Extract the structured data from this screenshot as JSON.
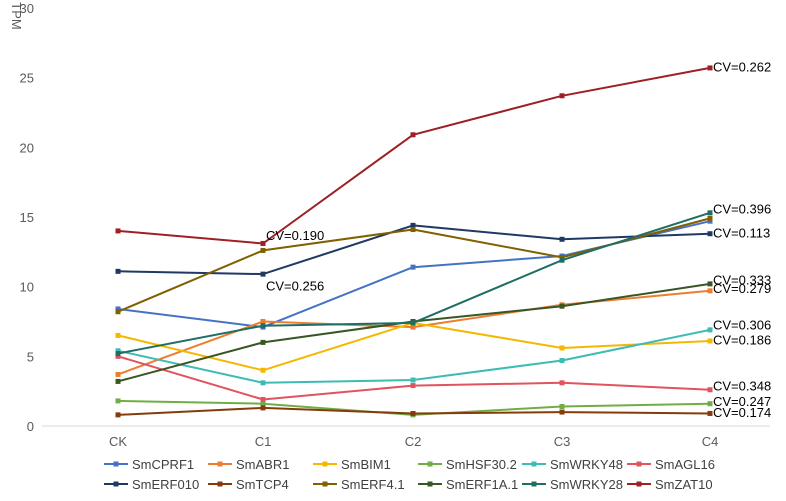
{
  "chart_data": {
    "type": "line",
    "ylabel": "TPM",
    "xlabel": "",
    "ylim": [
      0,
      30
    ],
    "yticks": [
      0,
      5,
      10,
      15,
      20,
      25,
      30
    ],
    "grid": false,
    "legend_position": "bottom",
    "categories": [
      "CK",
      "C1",
      "C2",
      "C3",
      "C4"
    ],
    "series": [
      {
        "name": "SmCPRF1",
        "color": "#4472C4",
        "values": [
          8.4,
          7.1,
          11.4,
          12.2,
          14.7
        ]
      },
      {
        "name": "SmABR1",
        "color": "#ED7D31",
        "values": [
          3.7,
          7.5,
          7.1,
          8.7,
          9.7
        ]
      },
      {
        "name": "SmBIM1",
        "color": "#F5B800",
        "values": [
          6.5,
          4.0,
          7.4,
          5.6,
          6.1
        ]
      },
      {
        "name": "SmHSF30.2",
        "color": "#70AD47",
        "values": [
          1.8,
          1.6,
          0.8,
          1.4,
          1.6
        ]
      },
      {
        "name": "SmWRKY48",
        "color": "#3CBCB4",
        "values": [
          5.4,
          3.1,
          3.3,
          4.7,
          6.9
        ]
      },
      {
        "name": "SmAGL16",
        "color": "#E0535F",
        "values": [
          5.0,
          1.9,
          2.9,
          3.1,
          2.6
        ]
      },
      {
        "name": "SmERF010",
        "color": "#203864",
        "values": [
          11.1,
          10.9,
          14.4,
          13.4,
          13.8
        ]
      },
      {
        "name": "SmTCP4",
        "color": "#843C0C",
        "values": [
          0.8,
          1.3,
          0.9,
          1.0,
          0.9
        ]
      },
      {
        "name": "SmERF4.1",
        "color": "#806000",
        "values": [
          8.2,
          12.6,
          14.1,
          12.1,
          14.9
        ]
      },
      {
        "name": "SmERF1A.1",
        "color": "#385723",
        "values": [
          3.2,
          6.0,
          7.5,
          8.6,
          10.2
        ]
      },
      {
        "name": "SmWRKY28",
        "color": "#1F6E64",
        "values": [
          5.2,
          7.2,
          7.4,
          11.9,
          15.3
        ]
      },
      {
        "name": "SmZAT10",
        "color": "#9E1F24",
        "values": [
          14.0,
          13.1,
          20.9,
          23.7,
          25.7
        ]
      }
    ],
    "annotations": [
      {
        "text": "CV=0.262",
        "x": "C4",
        "y": 25.8
      },
      {
        "text": "CV=0.396",
        "x": "C4",
        "y": 15.6
      },
      {
        "text": "CV=0.113",
        "x": "C4",
        "y": 13.9
      },
      {
        "text": "CV=0.190",
        "x": "C1",
        "y": 13.7
      },
      {
        "text": "CV=0.256",
        "x": "C1",
        "y": 10.1
      },
      {
        "text": "CV=0.333",
        "x": "C4",
        "y": 10.5
      },
      {
        "text": "CV=0.279",
        "x": "C4",
        "y": 9.9
      },
      {
        "text": "CV=0.306",
        "x": "C4",
        "y": 7.3
      },
      {
        "text": "CV=0.186",
        "x": "C4",
        "y": 6.2
      },
      {
        "text": "CV=0.348",
        "x": "C4",
        "y": 2.9
      },
      {
        "text": "CV=0.247",
        "x": "C4",
        "y": 1.8
      },
      {
        "text": "CV=0.174",
        "x": "C4",
        "y": 1.0
      }
    ]
  }
}
